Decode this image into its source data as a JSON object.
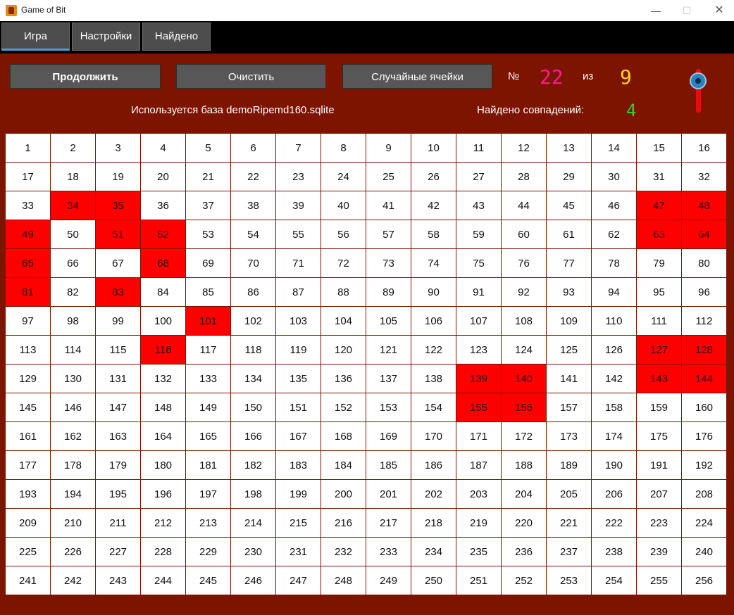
{
  "window": {
    "title": "Game of Bit",
    "minimize": "—",
    "maximize": "☐",
    "close": "✕"
  },
  "tabs": [
    {
      "label": "Игра",
      "active": true
    },
    {
      "label": "Настройки",
      "active": false
    },
    {
      "label": "Найдено",
      "active": false
    }
  ],
  "toolbar": {
    "continue_label": "Продолжить",
    "clear_label": "Очистить",
    "random_label": "Случайные ячейки",
    "number_sign": "№",
    "current_number": "22",
    "of_label": "из",
    "total": "9"
  },
  "status": {
    "database_text": "Используется база demoRipemd160.sqlite",
    "matches_label": "Найдено совпадений:",
    "matches_count": "4"
  },
  "colors": {
    "background": "#7c1400",
    "cell_on": "#ff0000",
    "cell_off": "#ffffff",
    "current_number": "#ff1a8c",
    "total": "#ffd21a",
    "matches": "#22dd22"
  },
  "grid": {
    "columns": 16,
    "cells": 256,
    "active": [
      34,
      35,
      47,
      48,
      49,
      51,
      52,
      63,
      64,
      65,
      68,
      81,
      83,
      101,
      116,
      127,
      128,
      139,
      140,
      143,
      144,
      155,
      156
    ]
  }
}
